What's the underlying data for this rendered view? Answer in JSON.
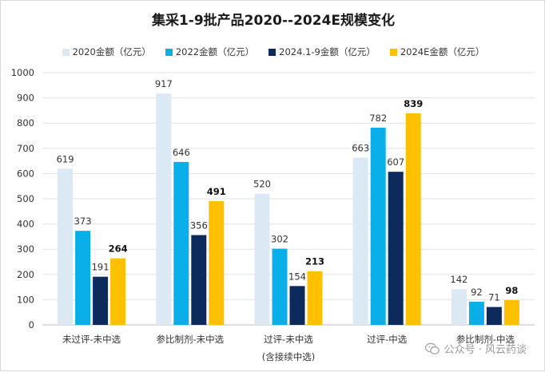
{
  "chart_data": {
    "type": "bar",
    "title": "集采1-9批产品2020--2024E规模变化",
    "categories": [
      "未过评-未中选",
      "参比制剂-未中选",
      "过评-未中选",
      "过评-中选",
      "参比制剂-中选"
    ],
    "category_sublabels": [
      "",
      "",
      "(含接续中选)",
      "",
      ""
    ],
    "series": [
      {
        "name": "2020金额（亿元）",
        "color": "#dde8f5",
        "values": [
          619,
          917,
          520,
          663,
          142
        ]
      },
      {
        "name": "2022金额（亿元）",
        "color": "#0aaee8",
        "values": [
          373,
          646,
          302,
          782,
          92
        ]
      },
      {
        "name": "2024.1-9金额（亿元）",
        "color": "#0d2a5c",
        "values": [
          191,
          356,
          154,
          607,
          71
        ]
      },
      {
        "name": "2024E金额（亿元）",
        "color": "#ffc000",
        "values": [
          264,
          491,
          213,
          839,
          98
        ],
        "bold_labels": true
      }
    ],
    "ylim": [
      0,
      1000
    ],
    "yticks": [
      0,
      100,
      200,
      300,
      400,
      500,
      600,
      700,
      800,
      900,
      1000
    ],
    "grid": true,
    "legend": "top-center",
    "xlabel": "",
    "ylabel": ""
  },
  "watermark": {
    "text": "公众号 · 风云药谈",
    "icon": "wechat-icon"
  }
}
